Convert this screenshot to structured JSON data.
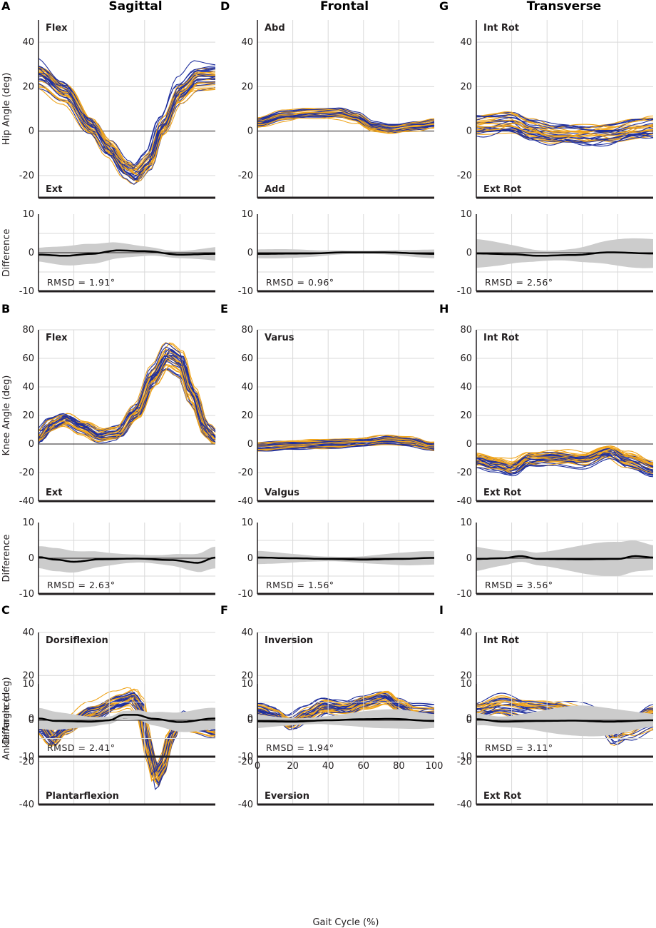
{
  "chart_data": {
    "type": "line",
    "xlabel": "Gait Cycle (%)",
    "xlim": [
      0,
      100
    ],
    "x_ticks": [
      "0",
      "20",
      "40",
      "60",
      "80",
      "100"
    ],
    "series_colors": {
      "group_a": "#1f2f9e",
      "group_b": "#f0a51c",
      "difference_band": "#cccccc",
      "mean_difference": "#000000"
    },
    "plane_titles": [
      "Sagittal",
      "Frontal",
      "Transverse"
    ],
    "rows": [
      {
        "ylabel": "Hip Angle (deg)",
        "ylim": [
          -30,
          50
        ],
        "yticks": [
          -20,
          0,
          20,
          40
        ],
        "panels": [
          {
            "letter": "A",
            "top_label": "Flex",
            "bottom_label": "Ext",
            "rmsd": "RMSD = 1.91°",
            "mean_curve": [
              [
                0,
                26
              ],
              [
                15,
                18
              ],
              [
                30,
                2
              ],
              [
                40,
                -8
              ],
              [
                50,
                -17
              ],
              [
                55,
                -19.5
              ],
              [
                62,
                -14
              ],
              [
                70,
                2
              ],
              [
                80,
                18
              ],
              [
                90,
                25
              ],
              [
                100,
                25
              ]
            ],
            "spread": 3.5,
            "diff_mean": [
              [
                0,
                -0.5
              ],
              [
                15,
                -0.8
              ],
              [
                30,
                -0.3
              ],
              [
                45,
                0.6
              ],
              [
                60,
                0.4
              ],
              [
                80,
                -0.5
              ],
              [
                100,
                -0.3
              ]
            ],
            "diff_sd": 2.2
          },
          {
            "letter": "D",
            "top_label": "Abd",
            "bottom_label": "Add",
            "rmsd": "RMSD = 0.96°",
            "mean_curve": [
              [
                0,
                4
              ],
              [
                15,
                7
              ],
              [
                30,
                8
              ],
              [
                45,
                8
              ],
              [
                55,
                6
              ],
              [
                65,
                2
              ],
              [
                75,
                1
              ],
              [
                90,
                2.5
              ],
              [
                100,
                3.5
              ]
            ],
            "spread": 1.8,
            "diff_mean": [
              [
                0,
                -0.3
              ],
              [
                30,
                -0.2
              ],
              [
                50,
                0.1
              ],
              [
                70,
                0.1
              ],
              [
                100,
                -0.3
              ]
            ],
            "diff_sd": 1.0
          },
          {
            "letter": "G",
            "top_label": "Int Rot",
            "bottom_label": "Ext Rot",
            "rmsd": "RMSD = 2.56°",
            "mean_curve": [
              [
                0,
                3
              ],
              [
                20,
                4
              ],
              [
                30,
                1
              ],
              [
                45,
                -1.5
              ],
              [
                60,
                -2
              ],
              [
                75,
                -1
              ],
              [
                90,
                1
              ],
              [
                100,
                2
              ]
            ],
            "spread": 4.0,
            "diff_mean": [
              [
                0,
                -0.2
              ],
              [
                20,
                -0.4
              ],
              [
                35,
                -0.8
              ],
              [
                55,
                -0.6
              ],
              [
                75,
                0.1
              ],
              [
                100,
                -0.2
              ]
            ],
            "diff_sd": 3.2
          }
        ]
      },
      {
        "ylabel": "Knee Angle (deg)",
        "ylim": [
          -40,
          80
        ],
        "yticks": [
          -40,
          -20,
          0,
          20,
          40,
          60,
          80
        ],
        "panels": [
          {
            "letter": "B",
            "top_label": "Flex",
            "bottom_label": "Ext",
            "rmsd": "RMSD = 2.63°",
            "mean_curve": [
              [
                0,
                5
              ],
              [
                7,
                14
              ],
              [
                15,
                18
              ],
              [
                25,
                12
              ],
              [
                35,
                6
              ],
              [
                45,
                8
              ],
              [
                55,
                22
              ],
              [
                65,
                48
              ],
              [
                73,
                63
              ],
              [
                80,
                58
              ],
              [
                87,
                35
              ],
              [
                95,
                10
              ],
              [
                100,
                4
              ]
            ],
            "spread": 4.5,
            "diff_mean": [
              [
                0,
                0.3
              ],
              [
                10,
                -0.4
              ],
              [
                20,
                -1.0
              ],
              [
                35,
                -0.3
              ],
              [
                55,
                -0.1
              ],
              [
                75,
                -0.5
              ],
              [
                90,
                -1.3
              ],
              [
                100,
                0.2
              ]
            ],
            "diff_sd": 2.7
          },
          {
            "letter": "E",
            "top_label": "Varus",
            "bottom_label": "Valgus",
            "rmsd": "RMSD = 1.56°",
            "mean_curve": [
              [
                0,
                -2
              ],
              [
                20,
                -1
              ],
              [
                40,
                0
              ],
              [
                60,
                1
              ],
              [
                75,
                3
              ],
              [
                85,
                2
              ],
              [
                100,
                -2
              ]
            ],
            "spread": 2.8,
            "diff_mean": [
              [
                0,
                0.2
              ],
              [
                20,
                0
              ],
              [
                40,
                -0.2
              ],
              [
                60,
                -0.4
              ],
              [
                80,
                -0.2
              ],
              [
                100,
                0.1
              ]
            ],
            "diff_sd": 1.6
          },
          {
            "letter": "H",
            "top_label": "Int Rot",
            "bottom_label": "Ext Rot",
            "rmsd": "RMSD = 3.56°",
            "mean_curve": [
              [
                0,
                -12
              ],
              [
                10,
                -15
              ],
              [
                20,
                -18
              ],
              [
                30,
                -11
              ],
              [
                45,
                -10
              ],
              [
                60,
                -12
              ],
              [
                75,
                -6
              ],
              [
                85,
                -12
              ],
              [
                100,
                -18
              ]
            ],
            "spread": 4.5,
            "diff_mean": [
              [
                0,
                -0.2
              ],
              [
                15,
                0
              ],
              [
                25,
                0.6
              ],
              [
                35,
                -0.2
              ],
              [
                60,
                -0.3
              ],
              [
                80,
                -0.2
              ],
              [
                90,
                0.6
              ],
              [
                100,
                0.2
              ]
            ],
            "diff_sd": 4.0
          }
        ]
      },
      {
        "ylabel": "Ankle Angle (deg)",
        "ylim": [
          -40,
          40
        ],
        "yticks": [
          -40,
          -20,
          0,
          20,
          40
        ],
        "panels": [
          {
            "letter": "C",
            "top_label": "Dorsiflexion",
            "bottom_label": "Plantarflexion",
            "rmsd": "RMSD = 2.41°",
            "mean_curve": [
              [
                0,
                -3
              ],
              [
                8,
                -10
              ],
              [
                15,
                -4
              ],
              [
                30,
                3
              ],
              [
                45,
                8
              ],
              [
                53,
                10
              ],
              [
                58,
                5
              ],
              [
                62,
                -15
              ],
              [
                66,
                -28
              ],
              [
                70,
                -22
              ],
              [
                75,
                -8
              ],
              [
                80,
                0
              ],
              [
                88,
                -3
              ],
              [
                100,
                -5
              ]
            ],
            "spread": 3.5,
            "diff_mean": [
              [
                0,
                0.5
              ],
              [
                10,
                -0.2
              ],
              [
                30,
                -0.4
              ],
              [
                40,
                0
              ],
              [
                48,
                1.5
              ],
              [
                55,
                1.5
              ],
              [
                65,
                0.4
              ],
              [
                80,
                -0.5
              ],
              [
                100,
                0.5
              ]
            ],
            "diff_sd": 2.5
          },
          {
            "letter": "F",
            "top_label": "Inversion",
            "bottom_label": "Eversion",
            "rmsd": "RMSD = 1.94°",
            "mean_curve": [
              [
                0,
                4
              ],
              [
                10,
                2
              ],
              [
                18,
                -2
              ],
              [
                28,
                2
              ],
              [
                38,
                6
              ],
              [
                50,
                5
              ],
              [
                60,
                8
              ],
              [
                72,
                10
              ],
              [
                80,
                6
              ],
              [
                88,
                3
              ],
              [
                100,
                3
              ]
            ],
            "spread": 3.2,
            "diff_mean": [
              [
                0,
                -0.3
              ],
              [
                20,
                -0.4
              ],
              [
                40,
                0
              ],
              [
                60,
                0.3
              ],
              [
                75,
                0.4
              ],
              [
                100,
                -0.2
              ]
            ],
            "diff_sd": 2.2
          },
          {
            "letter": "I",
            "top_label": "Int Rot",
            "bottom_label": "Ext Rot",
            "rmsd": "RMSD = 3.11°",
            "mean_curve": [
              [
                0,
                2
              ],
              [
                15,
                5
              ],
              [
                30,
                3
              ],
              [
                45,
                2
              ],
              [
                60,
                1
              ],
              [
                70,
                0
              ],
              [
                78,
                -8
              ],
              [
                85,
                -5
              ],
              [
                100,
                0
              ]
            ],
            "spread": 5.0,
            "diff_mean": [
              [
                0,
                0.3
              ],
              [
                15,
                -0.4
              ],
              [
                35,
                -0.2
              ],
              [
                55,
                -0.1
              ],
              [
                75,
                -0.4
              ],
              [
                100,
                0
              ]
            ],
            "diff_sd": 3.5
          }
        ]
      }
    ],
    "difference_panel": {
      "ylabel": "Difference",
      "ylim": [
        -10,
        10
      ],
      "yticks": [
        -10,
        0,
        10
      ]
    }
  }
}
